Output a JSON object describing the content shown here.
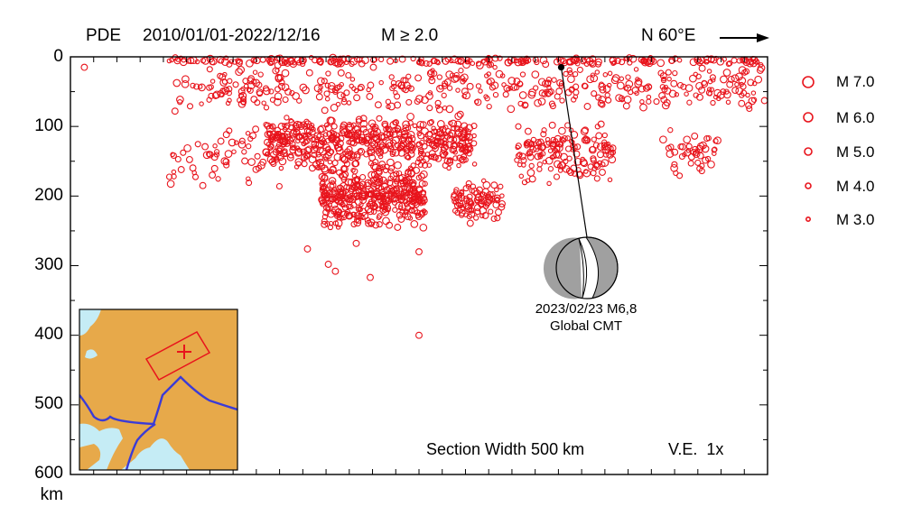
{
  "header": {
    "catalog": "PDE",
    "period": "2010/01/01-2022/12/16",
    "magnitude": "M ≥ 2.0",
    "direction": "N 60°E"
  },
  "legend": {
    "entries": [
      "M 7.0",
      "M 6.0",
      "M 5.0",
      "M 4.0",
      "M 3.0"
    ],
    "placement": "right"
  },
  "annotation": {
    "line1": "2023/02/23 M6,8",
    "line2": "Global CMT"
  },
  "footer": {
    "section_width": "Section Width 500 km",
    "ve": "V.E.  1x"
  },
  "colors": {
    "quake": "#e8141c",
    "land": "#e7a94a",
    "water": "#c5ecf5",
    "boundary": "#3b3bd6",
    "box": "#e8141c",
    "mech_gray": "#a0a0a0"
  },
  "chart_data": {
    "type": "scatter",
    "xlabel": "",
    "ylabel": "km",
    "ylim": [
      0,
      600
    ],
    "y_inverted": true,
    "yticks": [
      0,
      100,
      200,
      300,
      400,
      500,
      600
    ],
    "grid": false,
    "clusters": [
      {
        "x_range": [
          0.14,
          1.0
        ],
        "depth_range": [
          0,
          12
        ],
        "count": 230
      },
      {
        "x_range": [
          0.15,
          1.0
        ],
        "depth_range": [
          10,
          80
        ],
        "count": 400
      },
      {
        "x_range": [
          0.28,
          0.58
        ],
        "depth_range": [
          80,
          165
        ],
        "count": 520
      },
      {
        "x_range": [
          0.36,
          0.51
        ],
        "depth_range": [
          150,
          250
        ],
        "count": 400
      },
      {
        "x_range": [
          0.55,
          0.62
        ],
        "depth_range": [
          175,
          240
        ],
        "count": 90
      },
      {
        "x_range": [
          0.64,
          0.78
        ],
        "depth_range": [
          95,
          185
        ],
        "count": 160
      },
      {
        "x_range": [
          0.85,
          0.93
        ],
        "depth_range": [
          100,
          175
        ],
        "count": 45
      },
      {
        "x_range": [
          0.14,
          0.3
        ],
        "depth_range": [
          90,
          190
        ],
        "count": 60
      }
    ],
    "outliers": [
      {
        "x": 0.5,
        "depth": 400
      },
      {
        "x": 0.43,
        "depth": 317
      },
      {
        "x": 0.37,
        "depth": 298
      },
      {
        "x": 0.38,
        "depth": 308
      },
      {
        "x": 0.34,
        "depth": 276
      },
      {
        "x": 0.5,
        "depth": 280
      },
      {
        "x": 0.02,
        "depth": 15
      },
      {
        "x": 0.15,
        "depth": 78
      },
      {
        "x": 0.41,
        "depth": 268
      }
    ],
    "mainshock": {
      "date": "2023/02/23",
      "magnitude": 6.8,
      "x": 0.704,
      "depth": 15
    }
  }
}
